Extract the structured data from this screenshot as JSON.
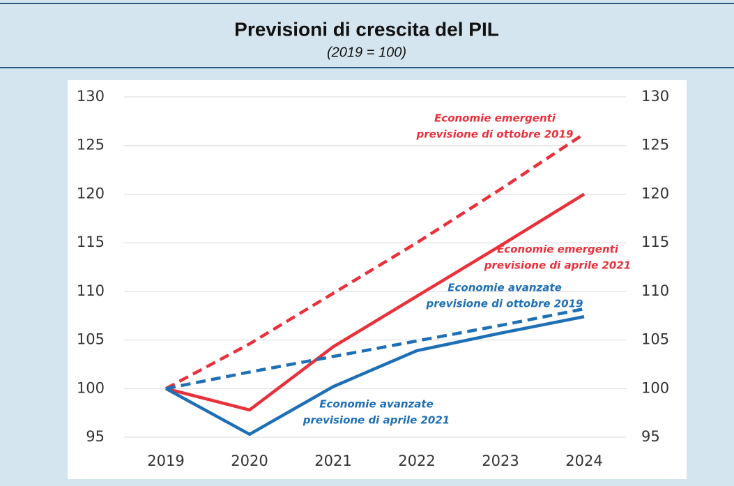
{
  "chart_data": {
    "type": "line",
    "title": "Previsioni di crescita del PIL",
    "subtitle": "(2019 = 100)",
    "x": [
      2019,
      2020,
      2021,
      2022,
      2023,
      2024
    ],
    "xlim": [
      2018.5,
      2024.5
    ],
    "ylim": [
      93,
      131
    ],
    "yticks": [
      95,
      100,
      105,
      110,
      115,
      120,
      125,
      130
    ],
    "mirror_yticks": true,
    "grid": true,
    "series": [
      {
        "color": "#e8313a",
        "dash": true,
        "values": [
          100,
          104.6,
          109.8,
          115,
          120.5,
          126.2
        ]
      },
      {
        "color": "#e8313a",
        "dash": false,
        "values": [
          100,
          97.8,
          104.3,
          109.5,
          114.7,
          120
        ]
      },
      {
        "color": "#1f6fb5",
        "dash": true,
        "values": [
          100,
          101.7,
          103.3,
          104.9,
          106.5,
          108.2
        ]
      },
      {
        "color": "#1f6fb5",
        "dash": false,
        "values": [
          100,
          95.3,
          100.2,
          103.9,
          105.7,
          107.4
        ]
      }
    ],
    "annotations": [
      {
        "color": "#e8313a",
        "lines": [
          "Economie emergenti",
          "previsione di ottobre 2019"
        ]
      },
      {
        "color": "#e8313a",
        "lines": [
          "Economie emergenti",
          "previsione di aprile 2021"
        ]
      },
      {
        "color": "#1f6fb5",
        "lines": [
          "Economie avanzate",
          "previsione di ottobre 2019"
        ]
      },
      {
        "color": "#1f6fb5",
        "lines": [
          "Economie avanzate",
          "previsione di aprile 2021"
        ]
      }
    ]
  }
}
